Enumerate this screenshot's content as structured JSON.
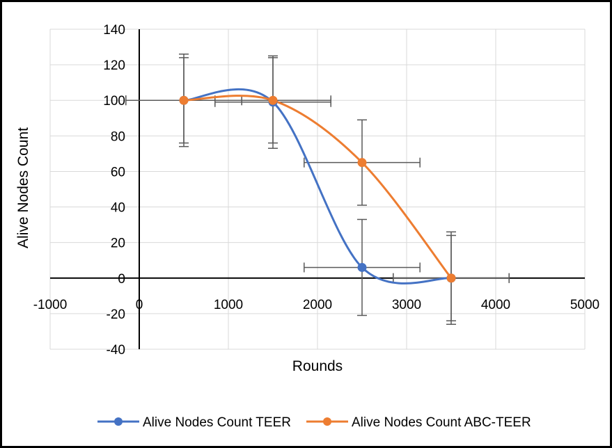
{
  "chart_data": {
    "type": "scatter",
    "xlabel": "Rounds",
    "ylabel": "Alive Nodes Count",
    "xlim": [
      -1000,
      5000
    ],
    "ylim": [
      -40,
      140
    ],
    "xticks": [
      -1000,
      0,
      1000,
      2000,
      3000,
      4000,
      5000
    ],
    "yticks": [
      -40,
      -20,
      0,
      20,
      40,
      60,
      80,
      100,
      120,
      140
    ],
    "grid": true,
    "smooth_lines": true,
    "legend_position": "bottom",
    "series": [
      {
        "name": "Alive Nodes Count TEER",
        "color": "#4472c4",
        "x": [
          500,
          1500,
          2500,
          3500
        ],
        "y": [
          100,
          99,
          6,
          0
        ],
        "y_error": [
          26,
          26,
          27,
          26
        ],
        "x_error": [
          650,
          650,
          650,
          650
        ]
      },
      {
        "name": "Alive Nodes Count ABC-TEER",
        "color": "#ed7d31",
        "x": [
          500,
          1500,
          2500,
          3500
        ],
        "y": [
          100,
          100,
          65,
          0
        ],
        "y_error": [
          24,
          24,
          24,
          24
        ],
        "x_error": [
          650,
          650,
          650,
          650
        ]
      }
    ]
  }
}
